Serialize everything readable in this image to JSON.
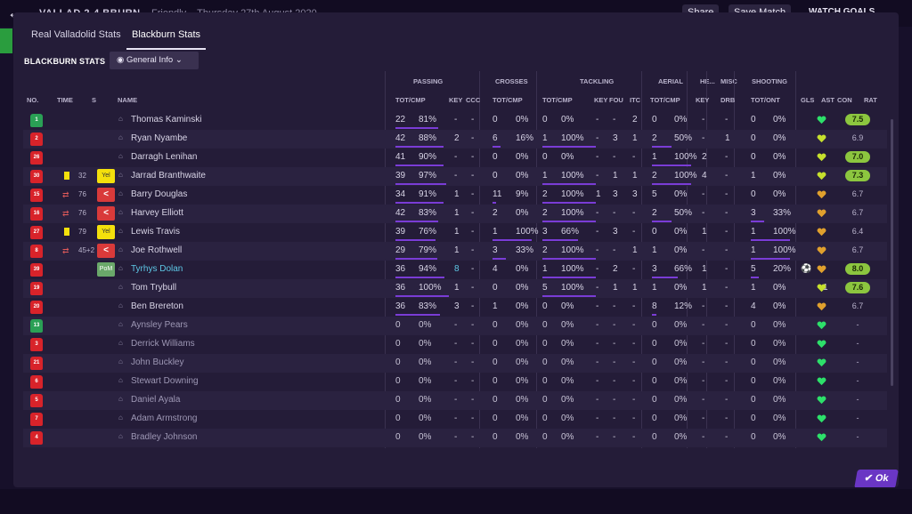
{
  "topbar": {
    "match_title": "VALLAD 2-4 BBURN",
    "match_sub": "Friendly – Thursday 27th August 2020",
    "share": "Share",
    "save": "Save Match",
    "watch": "WATCH GOALS"
  },
  "tabs": [
    "Real Valladolid Stats",
    "Blackburn Stats"
  ],
  "team_label": "BLACKBURN STATS",
  "view_select": "General Info",
  "ok_label": "Ok",
  "groups": [
    "PASSING",
    "CROSSES",
    "TACKLING",
    "AERIAL",
    "HE...",
    "MISC",
    "SHOOTING"
  ],
  "columns": [
    "NO.",
    "TIME",
    "S",
    "NAME",
    "TOT/CMP",
    "KEY",
    "CCC",
    "TOT/CMP",
    "TOT/CMP",
    "KEY",
    "FOU",
    "ITC",
    "TOT/CMP",
    "KEY",
    "DRB",
    "TOT/ONT",
    "GLS",
    "AST",
    "CON",
    "RAT"
  ],
  "colors": {
    "accent": "#7a3cd6",
    "rating_high": "#8cc63f",
    "heart_green": "#2de06a",
    "heart_yellow": "#c6e02d",
    "heart_orange": "#e0a02d"
  },
  "players": [
    {
      "no": "1",
      "gk": true,
      "name": "Thomas Kaminski",
      "card": "",
      "time": "",
      "badge": "",
      "p": [
        "22",
        "81%"
      ],
      "pk": "-",
      "ccc": "-",
      "cr": [
        "0",
        "0%"
      ],
      "tk": [
        "0",
        "0%"
      ],
      "tkk": "-",
      "fou": "-",
      "itc": "2",
      "ae": [
        "0",
        "0%"
      ],
      "aek": "-",
      "drb": "-",
      "sh": [
        "0",
        "0%"
      ],
      "gls": "",
      "ast": "-",
      "con": "green",
      "rat": "7.5",
      "rhi": true,
      "bars": [
        0.8,
        0,
        0,
        0,
        0
      ]
    },
    {
      "no": "2",
      "name": "Ryan Nyambe",
      "card": "",
      "time": "",
      "badge": "",
      "p": [
        "42",
        "88%"
      ],
      "pk": "2",
      "ccc": "-",
      "cr": [
        "6",
        "16%"
      ],
      "tk": [
        "1",
        "100%"
      ],
      "tkk": "-",
      "fou": "3",
      "itc": "1",
      "ae": [
        "2",
        "50%"
      ],
      "aek": "-",
      "drb": "1",
      "sh": [
        "0",
        "0%"
      ],
      "gls": "",
      "ast": "-",
      "con": "yellow",
      "rat": "6.9",
      "rhi": false,
      "bars": [
        0.9,
        0.2,
        1,
        0.5,
        0
      ]
    },
    {
      "no": "26",
      "name": "Darragh Lenihan",
      "card": "",
      "time": "",
      "badge": "",
      "p": [
        "41",
        "90%"
      ],
      "pk": "-",
      "ccc": "-",
      "cr": [
        "0",
        "0%"
      ],
      "tk": [
        "0",
        "0%"
      ],
      "tkk": "-",
      "fou": "-",
      "itc": "-",
      "ae": [
        "1",
        "100%"
      ],
      "aek": "2",
      "drb": "-",
      "sh": [
        "0",
        "0%"
      ],
      "gls": "",
      "ast": "-",
      "con": "yellow",
      "rat": "7.0",
      "rhi": true,
      "bars": [
        0.9,
        0,
        0,
        1,
        0
      ]
    },
    {
      "no": "30",
      "name": "Jarrad Branthwaite",
      "card": "yellow",
      "time": "32",
      "badge": "Yel",
      "p": [
        "39",
        "97%"
      ],
      "pk": "-",
      "ccc": "-",
      "cr": [
        "0",
        "0%"
      ],
      "tk": [
        "1",
        "100%"
      ],
      "tkk": "-",
      "fou": "1",
      "itc": "1",
      "ae": [
        "2",
        "100%"
      ],
      "aek": "4",
      "drb": "-",
      "sh": [
        "1",
        "0%"
      ],
      "gls": "",
      "ast": "-",
      "con": "yellow",
      "rat": "7.3",
      "rhi": true,
      "bars": [
        0.95,
        0,
        1,
        1,
        0
      ]
    },
    {
      "no": "15",
      "name": "Barry Douglas",
      "card": "",
      "time": "76",
      "badge": "sub",
      "p": [
        "34",
        "91%"
      ],
      "pk": "1",
      "ccc": "-",
      "cr": [
        "11",
        "9%"
      ],
      "tk": [
        "2",
        "100%"
      ],
      "tkk": "1",
      "fou": "3",
      "itc": "3",
      "ae": [
        "5",
        "0%"
      ],
      "aek": "-",
      "drb": "-",
      "sh": [
        "0",
        "0%"
      ],
      "gls": "",
      "ast": "-",
      "con": "orange",
      "rat": "6.7",
      "rhi": false,
      "bars": [
        0.9,
        0.1,
        1,
        0,
        0
      ]
    },
    {
      "no": "16",
      "name": "Harvey Elliott",
      "card": "",
      "time": "76",
      "badge": "sub",
      "p": [
        "42",
        "83%"
      ],
      "pk": "1",
      "ccc": "-",
      "cr": [
        "2",
        "0%"
      ],
      "tk": [
        "2",
        "100%"
      ],
      "tkk": "-",
      "fou": "-",
      "itc": "-",
      "ae": [
        "2",
        "50%"
      ],
      "aek": "-",
      "drb": "-",
      "sh": [
        "3",
        "33%"
      ],
      "gls": "",
      "ast": "-",
      "con": "orange",
      "rat": "6.7",
      "rhi": false,
      "bars": [
        0.8,
        0,
        1,
        0.5,
        0.33
      ]
    },
    {
      "no": "27",
      "name": "Lewis Travis",
      "card": "yellow",
      "time": "79",
      "badge": "Yel",
      "p": [
        "39",
        "76%"
      ],
      "pk": "1",
      "ccc": "-",
      "cr": [
        "1",
        "100%"
      ],
      "tk": [
        "3",
        "66%"
      ],
      "tkk": "-",
      "fou": "3",
      "itc": "-",
      "ae": [
        "0",
        "0%"
      ],
      "aek": "1",
      "drb": "-",
      "sh": [
        "1",
        "100%"
      ],
      "gls": "",
      "ast": "-",
      "con": "orange",
      "rat": "6.4",
      "rhi": false,
      "bars": [
        0.75,
        1,
        0.66,
        0,
        1
      ]
    },
    {
      "no": "8",
      "name": "Joe Rothwell",
      "card": "",
      "time": "45+2",
      "badge": "sub",
      "p": [
        "29",
        "79%"
      ],
      "pk": "1",
      "ccc": "-",
      "cr": [
        "3",
        "33%"
      ],
      "tk": [
        "2",
        "100%"
      ],
      "tkk": "-",
      "fou": "-",
      "itc": "1",
      "ae": [
        "1",
        "0%"
      ],
      "aek": "-",
      "drb": "-",
      "sh": [
        "1",
        "100%"
      ],
      "gls": "",
      "ast": "-",
      "con": "orange",
      "rat": "6.7",
      "rhi": false,
      "bars": [
        0.78,
        0.33,
        1,
        0,
        1
      ]
    },
    {
      "no": "39",
      "name": "Tyrhys Dolan",
      "card": "",
      "time": "",
      "badge": "PoM",
      "p": [
        "36",
        "94%"
      ],
      "pk": "8",
      "ccc": "-",
      "cr": [
        "4",
        "0%"
      ],
      "tk": [
        "1",
        "100%"
      ],
      "tkk": "-",
      "fou": "2",
      "itc": "-",
      "ae": [
        "3",
        "66%"
      ],
      "aek": "1",
      "drb": "-",
      "sh": [
        "5",
        "20%"
      ],
      "gls": "ball",
      "ast": "-",
      "con": "orange",
      "rat": "8.0",
      "rhi": true,
      "pom": true,
      "bars": [
        0.92,
        0,
        1,
        0.66,
        0.2
      ]
    },
    {
      "no": "19",
      "name": "Tom Trybull",
      "card": "",
      "time": "",
      "badge": "",
      "p": [
        "36",
        "100%"
      ],
      "pk": "1",
      "ccc": "-",
      "cr": [
        "0",
        "0%"
      ],
      "tk": [
        "5",
        "100%"
      ],
      "tkk": "-",
      "fou": "1",
      "itc": "1",
      "ae": [
        "1",
        "0%"
      ],
      "aek": "1",
      "drb": "-",
      "sh": [
        "1",
        "0%"
      ],
      "gls": "",
      "ast": "1",
      "con": "yellow",
      "rat": "7.6",
      "rhi": true,
      "bars": [
        1,
        0,
        1,
        0,
        0
      ]
    },
    {
      "no": "20",
      "name": "Ben Brereton",
      "card": "",
      "time": "",
      "badge": "",
      "p": [
        "36",
        "83%"
      ],
      "pk": "3",
      "ccc": "-",
      "cr": [
        "1",
        "0%"
      ],
      "tk": [
        "0",
        "0%"
      ],
      "tkk": "-",
      "fou": "-",
      "itc": "-",
      "ae": [
        "8",
        "12%"
      ],
      "aek": "-",
      "drb": "-",
      "sh": [
        "4",
        "0%"
      ],
      "gls": "",
      "ast": "-",
      "con": "orange",
      "rat": "6.7",
      "rhi": false,
      "bars": [
        0.83,
        0,
        0,
        0.12,
        0
      ]
    },
    {
      "no": "13",
      "gk": true,
      "name": "Aynsley Pears",
      "unused": true,
      "p": [
        "0",
        "0%"
      ],
      "pk": "-",
      "ccc": "-",
      "cr": [
        "0",
        "0%"
      ],
      "tk": [
        "0",
        "0%"
      ],
      "tkk": "-",
      "fou": "-",
      "itc": "-",
      "ae": [
        "0",
        "0%"
      ],
      "aek": "-",
      "drb": "-",
      "sh": [
        "0",
        "0%"
      ],
      "gls": "",
      "ast": "-",
      "con": "green",
      "rat": "-",
      "rhi": false,
      "bars": [
        0,
        0,
        0,
        0,
        0
      ]
    },
    {
      "no": "3",
      "name": "Derrick Williams",
      "unused": true,
      "p": [
        "0",
        "0%"
      ],
      "pk": "-",
      "ccc": "-",
      "cr": [
        "0",
        "0%"
      ],
      "tk": [
        "0",
        "0%"
      ],
      "tkk": "-",
      "fou": "-",
      "itc": "-",
      "ae": [
        "0",
        "0%"
      ],
      "aek": "-",
      "drb": "-",
      "sh": [
        "0",
        "0%"
      ],
      "gls": "",
      "ast": "-",
      "con": "green",
      "rat": "-",
      "rhi": false,
      "bars": [
        0,
        0,
        0,
        0,
        0
      ]
    },
    {
      "no": "21",
      "name": "John Buckley",
      "unused": true,
      "p": [
        "0",
        "0%"
      ],
      "pk": "-",
      "ccc": "-",
      "cr": [
        "0",
        "0%"
      ],
      "tk": [
        "0",
        "0%"
      ],
      "tkk": "-",
      "fou": "-",
      "itc": "-",
      "ae": [
        "0",
        "0%"
      ],
      "aek": "-",
      "drb": "-",
      "sh": [
        "0",
        "0%"
      ],
      "gls": "",
      "ast": "-",
      "con": "green",
      "rat": "-",
      "rhi": false,
      "bars": [
        0,
        0,
        0,
        0,
        0
      ]
    },
    {
      "no": "6",
      "name": "Stewart Downing",
      "unused": true,
      "p": [
        "0",
        "0%"
      ],
      "pk": "-",
      "ccc": "-",
      "cr": [
        "0",
        "0%"
      ],
      "tk": [
        "0",
        "0%"
      ],
      "tkk": "-",
      "fou": "-",
      "itc": "-",
      "ae": [
        "0",
        "0%"
      ],
      "aek": "-",
      "drb": "-",
      "sh": [
        "0",
        "0%"
      ],
      "gls": "",
      "ast": "-",
      "con": "green",
      "rat": "-",
      "rhi": false,
      "bars": [
        0,
        0,
        0,
        0,
        0
      ]
    },
    {
      "no": "5",
      "name": "Daniel Ayala",
      "unused": true,
      "p": [
        "0",
        "0%"
      ],
      "pk": "-",
      "ccc": "-",
      "cr": [
        "0",
        "0%"
      ],
      "tk": [
        "0",
        "0%"
      ],
      "tkk": "-",
      "fou": "-",
      "itc": "-",
      "ae": [
        "0",
        "0%"
      ],
      "aek": "-",
      "drb": "-",
      "sh": [
        "0",
        "0%"
      ],
      "gls": "",
      "ast": "-",
      "con": "green",
      "rat": "-",
      "rhi": false,
      "bars": [
        0,
        0,
        0,
        0,
        0
      ]
    },
    {
      "no": "7",
      "name": "Adam Armstrong",
      "unused": true,
      "p": [
        "0",
        "0%"
      ],
      "pk": "-",
      "ccc": "-",
      "cr": [
        "0",
        "0%"
      ],
      "tk": [
        "0",
        "0%"
      ],
      "tkk": "-",
      "fou": "-",
      "itc": "-",
      "ae": [
        "0",
        "0%"
      ],
      "aek": "-",
      "drb": "-",
      "sh": [
        "0",
        "0%"
      ],
      "gls": "",
      "ast": "-",
      "con": "green",
      "rat": "-",
      "rhi": false,
      "bars": [
        0,
        0,
        0,
        0,
        0
      ]
    },
    {
      "no": "4",
      "name": "Bradley Johnson",
      "unused": true,
      "p": [
        "0",
        "0%"
      ],
      "pk": "-",
      "ccc": "-",
      "cr": [
        "0",
        "0%"
      ],
      "tk": [
        "0",
        "0%"
      ],
      "tkk": "-",
      "fou": "-",
      "itc": "-",
      "ae": [
        "0",
        "0%"
      ],
      "aek": "-",
      "drb": "-",
      "sh": [
        "0",
        "0%"
      ],
      "gls": "",
      "ast": "-",
      "con": "green",
      "rat": "-",
      "rhi": false,
      "bars": [
        0,
        0,
        0,
        0,
        0
      ]
    }
  ]
}
